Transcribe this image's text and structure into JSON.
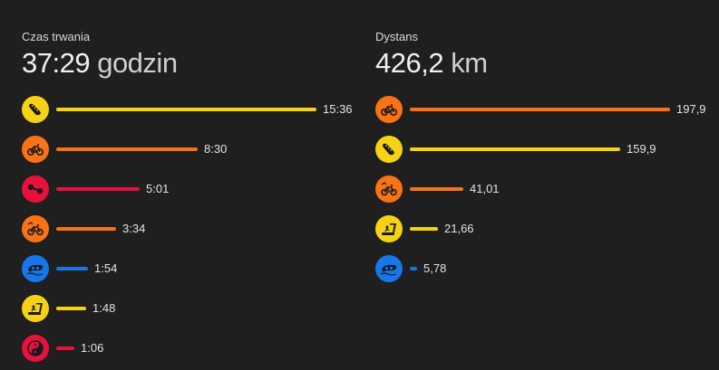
{
  "chart_data": [
    {
      "type": "bar",
      "orientation": "horizontal",
      "title": "Czas trwania",
      "total_value": "37:29",
      "total_unit": "godzin",
      "categories": [
        "running",
        "cycling",
        "strength",
        "mountain-biking",
        "swimming",
        "treadmill",
        "yoga"
      ],
      "values_minutes": [
        936,
        510,
        301,
        214,
        114,
        108,
        66
      ],
      "labels": [
        "15:36",
        "8:30",
        "5:01",
        "3:34",
        "1:54",
        "1:48",
        "1:06"
      ],
      "colors": [
        "#f6d215",
        "#f97316",
        "#e8103c",
        "#f97316",
        "#1677e8",
        "#f6d215",
        "#e8103c"
      ],
      "icons": [
        "running-shoe-icon",
        "bicycle-icon",
        "dumbbell-icon",
        "mountain-bike-icon",
        "swim-icon",
        "treadmill-icon",
        "yin-yang-icon"
      ]
    },
    {
      "type": "bar",
      "orientation": "horizontal",
      "title": "Dystans",
      "total_value": "426,2",
      "total_unit": "km",
      "categories": [
        "cycling",
        "running",
        "mountain-biking",
        "treadmill",
        "swimming"
      ],
      "values_km": [
        197.9,
        159.9,
        41.01,
        21.66,
        5.78
      ],
      "labels": [
        "197,9",
        "159,9",
        "41,01",
        "21,66",
        "5,78"
      ],
      "colors": [
        "#f97316",
        "#f6d215",
        "#f97316",
        "#f6d215",
        "#1677e8"
      ],
      "icons": [
        "bicycle-icon",
        "running-shoe-icon",
        "mountain-bike-icon",
        "treadmill-icon",
        "swim-icon"
      ]
    }
  ]
}
